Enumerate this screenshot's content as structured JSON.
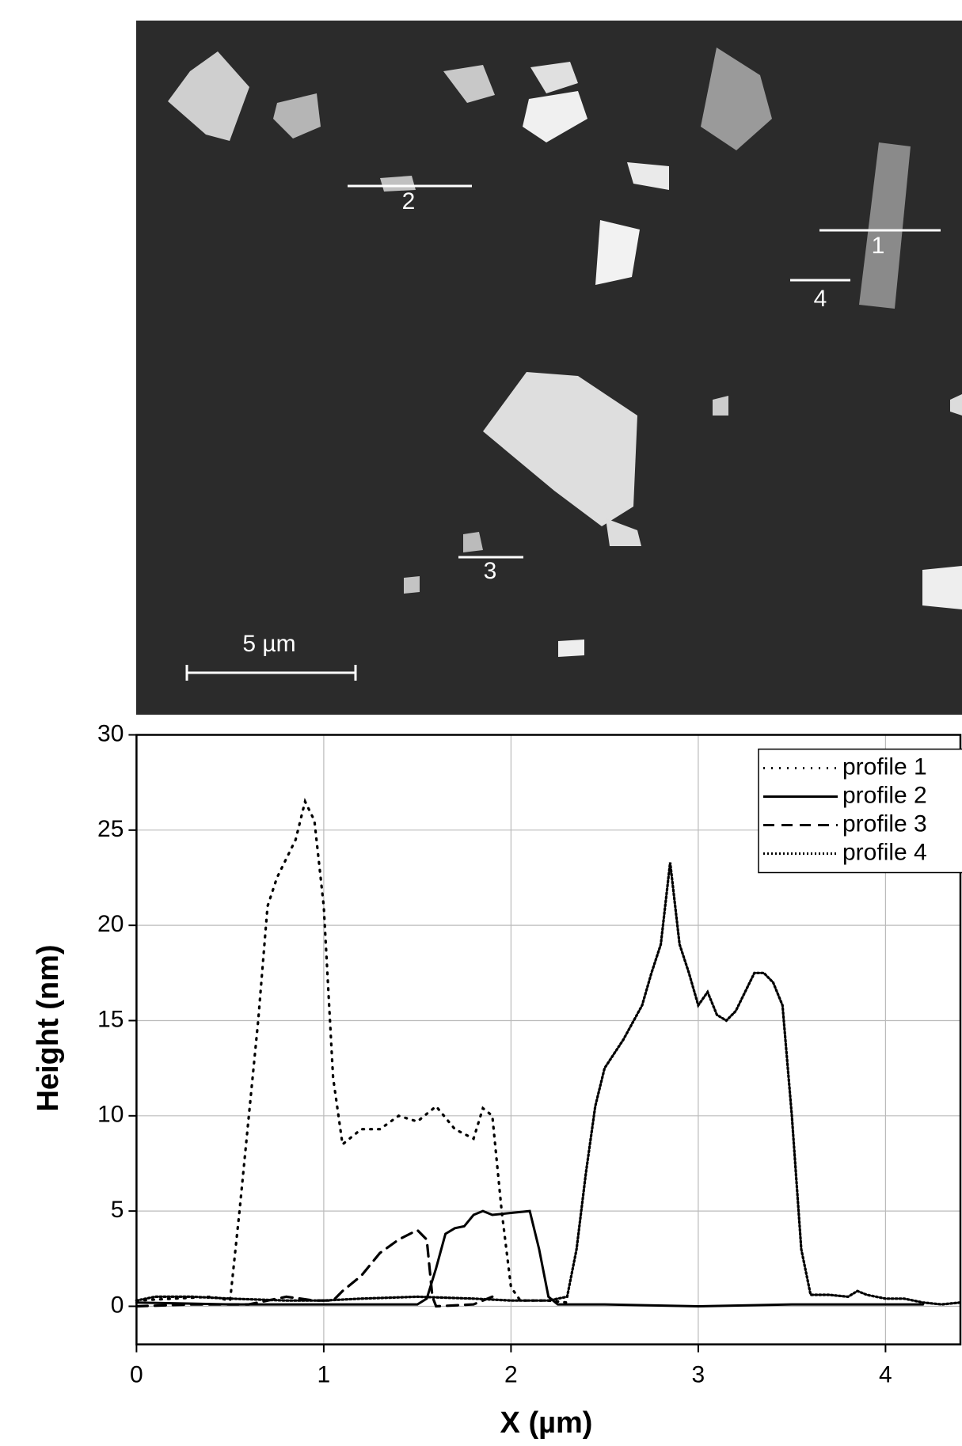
{
  "image": {
    "labels": [
      "1",
      "2",
      "3",
      "4"
    ],
    "scale_bar": "5 µm"
  },
  "chart_data": {
    "type": "line",
    "x_label": "X (µm)",
    "y_label": "Height (nm)",
    "xlim": [
      0,
      4.4
    ],
    "ylim": [
      -2,
      30
    ],
    "xticks": [
      0,
      1,
      2,
      3,
      4
    ],
    "yticks": [
      0,
      5,
      10,
      15,
      20,
      25,
      30
    ],
    "grid": true,
    "legend": "upper right",
    "series": [
      {
        "name": "profile 1",
        "color": "#000000",
        "line_style": "dotted",
        "x": [
          0,
          0.2,
          0.4,
          0.5,
          0.55,
          0.6,
          0.65,
          0.7,
          0.75,
          0.85,
          0.9,
          0.95,
          1.0,
          1.05,
          1.1,
          1.2,
          1.3,
          1.4,
          1.5,
          1.6,
          1.7,
          1.8,
          1.85,
          1.9,
          1.95,
          2.0,
          2.05,
          2.2,
          2.3
        ],
        "values": [
          0.3,
          0.4,
          0.5,
          0.3,
          5,
          10,
          15,
          21,
          22.5,
          24.5,
          26.5,
          25.5,
          21,
          12,
          8.5,
          9.3,
          9.3,
          10,
          9.7,
          10.5,
          9.3,
          8.8,
          10.4,
          10,
          5,
          1,
          0.3,
          0.3,
          0.2
        ]
      },
      {
        "name": "profile 2",
        "color": "#000000",
        "line_style": "solid",
        "x": [
          0,
          0.5,
          1.0,
          1.5,
          1.55,
          1.6,
          1.65,
          1.7,
          1.75,
          1.8,
          1.85,
          1.9,
          2.0,
          2.1,
          2.15,
          2.2,
          2.25,
          2.5,
          3.0,
          3.5,
          4.0,
          4.2
        ],
        "values": [
          0.2,
          0.1,
          0.1,
          0.1,
          0.4,
          2,
          3.8,
          4.1,
          4.2,
          4.8,
          5,
          4.8,
          4.9,
          5,
          3,
          0.5,
          0.1,
          0.1,
          0,
          0.1,
          0.1,
          0.1
        ]
      },
      {
        "name": "profile 3",
        "color": "#000000",
        "line_style": "dashed",
        "x": [
          0,
          0.3,
          0.6,
          0.8,
          0.95,
          1.05,
          1.1,
          1.2,
          1.3,
          1.4,
          1.5,
          1.55,
          1.58,
          1.6,
          1.8,
          1.9
        ],
        "values": [
          0,
          0.1,
          0.1,
          0.5,
          0.3,
          0.3,
          0.8,
          1.6,
          2.8,
          3.5,
          4,
          3.5,
          0.5,
          0,
          0.1,
          0.5
        ]
      },
      {
        "name": "profile 4",
        "color": "#000000",
        "line_style": "fine-dotted",
        "x": [
          0,
          0.1,
          0.3,
          0.5,
          0.8,
          1.0,
          1.2,
          1.5,
          1.8,
          2.0,
          2.2,
          2.3,
          2.35,
          2.4,
          2.45,
          2.5,
          2.6,
          2.7,
          2.75,
          2.8,
          2.85,
          2.9,
          2.95,
          3.0,
          3.05,
          3.1,
          3.15,
          3.2,
          3.3,
          3.35,
          3.4,
          3.45,
          3.5,
          3.55,
          3.6,
          3.7,
          3.8,
          3.85,
          3.9,
          4.0,
          4.1,
          4.2,
          4.3,
          4.4
        ],
        "values": [
          0.3,
          0.5,
          0.5,
          0.4,
          0.3,
          0.3,
          0.4,
          0.5,
          0.4,
          0.3,
          0.3,
          0.5,
          3,
          7,
          10.5,
          12.5,
          14,
          15.8,
          17.5,
          19,
          23.3,
          19,
          17.5,
          15.8,
          16.5,
          15.3,
          15,
          15.5,
          17.5,
          17.5,
          17,
          15.8,
          10,
          3,
          0.6,
          0.6,
          0.5,
          0.8,
          0.6,
          0.4,
          0.4,
          0.2,
          0.1,
          0.2
        ]
      }
    ]
  }
}
